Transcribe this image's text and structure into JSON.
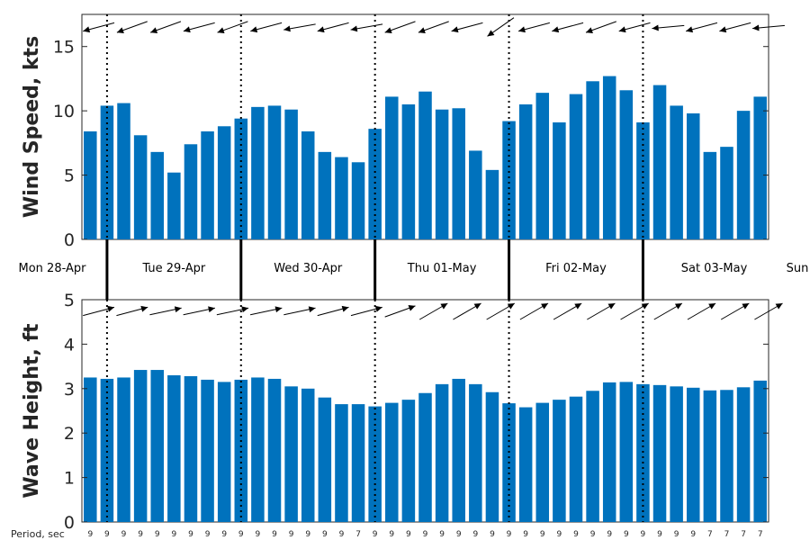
{
  "chart_data": [
    {
      "type": "bar",
      "title": "",
      "xlabel": "",
      "ylabel": "Wind Speed, kts",
      "ylim": [
        0,
        17.5
      ],
      "yticks": [
        0,
        5,
        10,
        15
      ],
      "grid": false,
      "bar_color": "#0072BD",
      "values": [
        8.4,
        10.4,
        10.6,
        8.1,
        6.8,
        5.2,
        7.4,
        8.4,
        8.8,
        9.4,
        10.3,
        10.4,
        10.1,
        8.4,
        6.8,
        6.4,
        6.0,
        8.6,
        11.1,
        10.5,
        11.5,
        10.1,
        10.2,
        6.9,
        5.4,
        9.2,
        10.5,
        11.4,
        9.1,
        11.3,
        12.3,
        12.7,
        11.6,
        9.1,
        12.0,
        10.4,
        9.8,
        6.8,
        7.2,
        10.0,
        11.1
      ],
      "direction_arrows_deg": [
        195,
        190,
        200,
        190,
        200,
        210,
        195,
        190,
        200,
        190,
        195,
        195,
        190,
        190,
        195,
        200,
        190,
        210,
        200,
        195,
        200,
        195,
        195,
        200,
        215,
        225,
        195,
        190,
        195,
        195,
        200,
        200,
        195,
        195,
        185,
        190,
        195,
        190,
        195,
        190,
        185
      ]
    },
    {
      "type": "bar",
      "title": "",
      "xlabel": "",
      "ylabel": "Wave Height, ft",
      "ylim": [
        0,
        5
      ],
      "yticks": [
        0,
        1,
        2,
        3,
        4,
        5
      ],
      "grid": false,
      "bar_color": "#0072BD",
      "values": [
        3.25,
        3.22,
        3.25,
        3.42,
        3.42,
        3.3,
        3.28,
        3.2,
        3.15,
        3.2,
        3.25,
        3.22,
        3.05,
        3.0,
        2.8,
        2.65,
        2.65,
        2.6,
        2.68,
        2.75,
        2.9,
        3.1,
        3.22,
        3.1,
        2.92,
        2.67,
        2.58,
        2.68,
        2.75,
        2.82,
        2.95,
        3.14,
        3.15,
        3.1,
        3.08,
        3.05,
        3.02,
        2.96,
        2.97,
        3.03,
        3.18
      ],
      "direction_arrows_deg": [
        15,
        15,
        15,
        12,
        12,
        12,
        12,
        12,
        12,
        12,
        12,
        12,
        12,
        12,
        15,
        15,
        15,
        15,
        20,
        25,
        30,
        30,
        30,
        30,
        30,
        30,
        30,
        30,
        30,
        30,
        30,
        30,
        30,
        30,
        30,
        30,
        30,
        30,
        30,
        30,
        30
      ]
    }
  ],
  "days": [
    {
      "label": "Mon 28-Apr",
      "bars": 1
    },
    {
      "label": "Tue 29-Apr",
      "bars": 8
    },
    {
      "label": "Wed 30-Apr",
      "bars": 8
    },
    {
      "label": "Thu 01-May",
      "bars": 8
    },
    {
      "label": "Fri 02-May",
      "bars": 8
    },
    {
      "label": "Sat 03-May",
      "bars": 8
    },
    {
      "label": "Sun",
      "bars": 0
    }
  ],
  "period": {
    "label": "Period, sec",
    "values": [
      "9",
      "9",
      "9",
      "9",
      "9",
      "9",
      "9",
      "9",
      "9",
      "9",
      "9",
      "9",
      "9",
      "9",
      "9",
      "9",
      "7",
      "9",
      "9",
      "9",
      "9",
      "9",
      "9",
      "9",
      "9",
      "9",
      "9",
      "9",
      "9",
      "9",
      "9",
      "9",
      "9",
      "9",
      "9",
      "9",
      "9",
      "7",
      "7",
      "7",
      "7"
    ]
  }
}
